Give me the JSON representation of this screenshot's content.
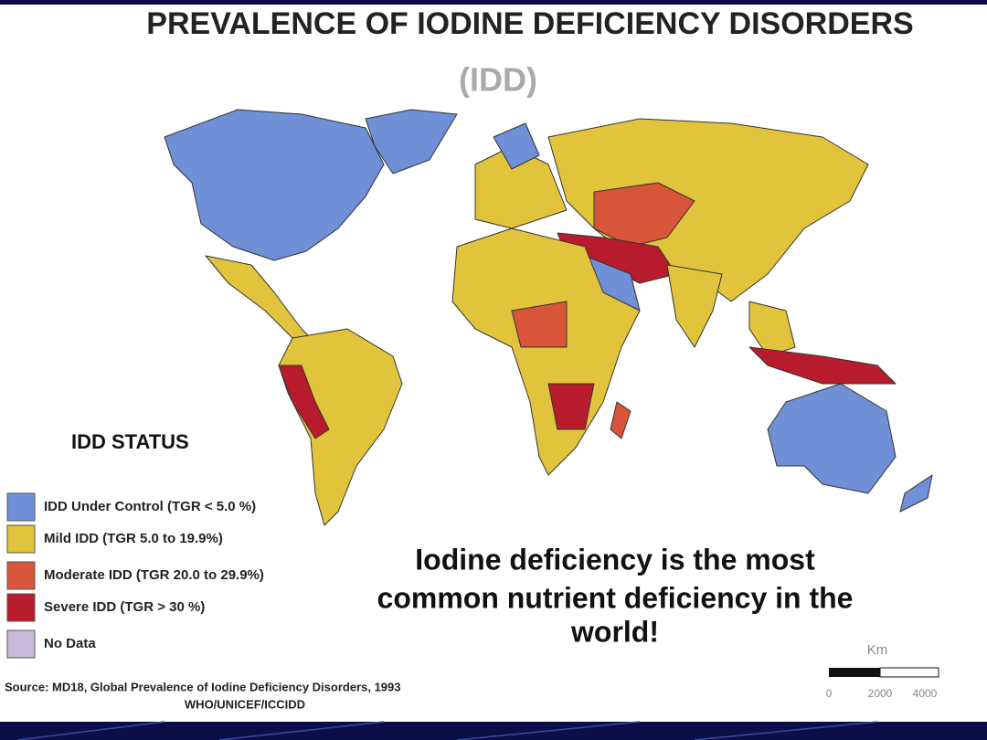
{
  "header": {
    "title": "PREVALENCE OF IODINE DEFICIENCY DISORDERS",
    "subtitle": "(IDD)"
  },
  "legend": {
    "title": "IDD STATUS",
    "items": [
      {
        "label": "IDD Under Control (TGR < 5.0 %)",
        "color": "#6f8fd6"
      },
      {
        "label": "Mild IDD   (TGR 5.0 to 19.9%)",
        "color": "#e2c43c"
      },
      {
        "label": "Moderate IDD   (TGR 20.0 to 29.9%)",
        "color": "#d9553a"
      },
      {
        "label": "Severe IDD (TGR > 30 %)",
        "color": "#b81c2c"
      },
      {
        "label": "No Data",
        "color": "#c9b9d9"
      }
    ]
  },
  "caption": {
    "lines": [
      "Iodine deficiency is the most",
      "common nutrient deficiency in the",
      "world!"
    ]
  },
  "scale": {
    "unit": "Km",
    "labels": [
      "0",
      "2000",
      "4000"
    ]
  },
  "source": {
    "lines": [
      "Source: MD18, Global Prevalence of Iodine Deficiency Disorders, 1993",
      "WHO/UNICEF/ICCIDD"
    ]
  }
}
